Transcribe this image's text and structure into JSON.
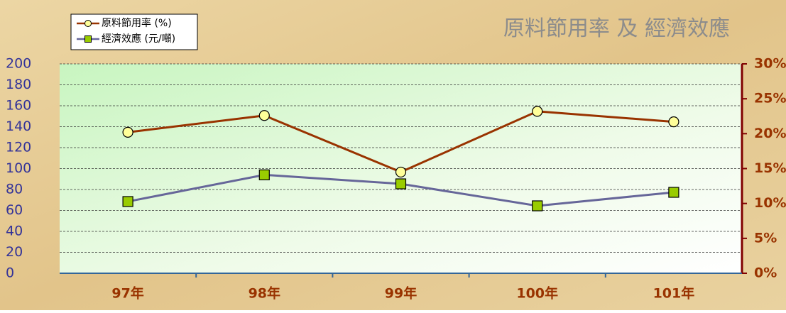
{
  "chart_data": {
    "type": "line",
    "title": "原料節用率 及 經濟效應",
    "categories": [
      "97年",
      "98年",
      "99年",
      "100年",
      "101年"
    ],
    "series": [
      {
        "name": "原料節用率 (%)",
        "color": "#993300",
        "marker_color": "#ffff99",
        "axis": "y2",
        "values": [
          20.2,
          22.6,
          14.5,
          23.2,
          21.7
        ]
      },
      {
        "name": "經濟效應 (元/噸)",
        "color": "#666699",
        "marker_color": "#99cc00",
        "values": [
          68.5,
          94,
          85.4,
          64.4,
          77.3
        ]
      }
    ],
    "ylim": [
      0,
      200
    ],
    "yticks": [
      0,
      20,
      40,
      60,
      80,
      100,
      120,
      140,
      160,
      180,
      200
    ],
    "y2lim": [
      0,
      30
    ],
    "y2ticks": [
      {
        "value": 0,
        "label": "0%"
      },
      {
        "value": 5,
        "label": "5%"
      },
      {
        "value": 10,
        "label": "10%"
      },
      {
        "value": 15,
        "label": "15%"
      },
      {
        "value": 20,
        "label": "20%"
      },
      {
        "value": 25,
        "label": "25%"
      },
      {
        "value": 30,
        "label": "30%"
      }
    ],
    "grid": true,
    "legend": "top-left"
  }
}
